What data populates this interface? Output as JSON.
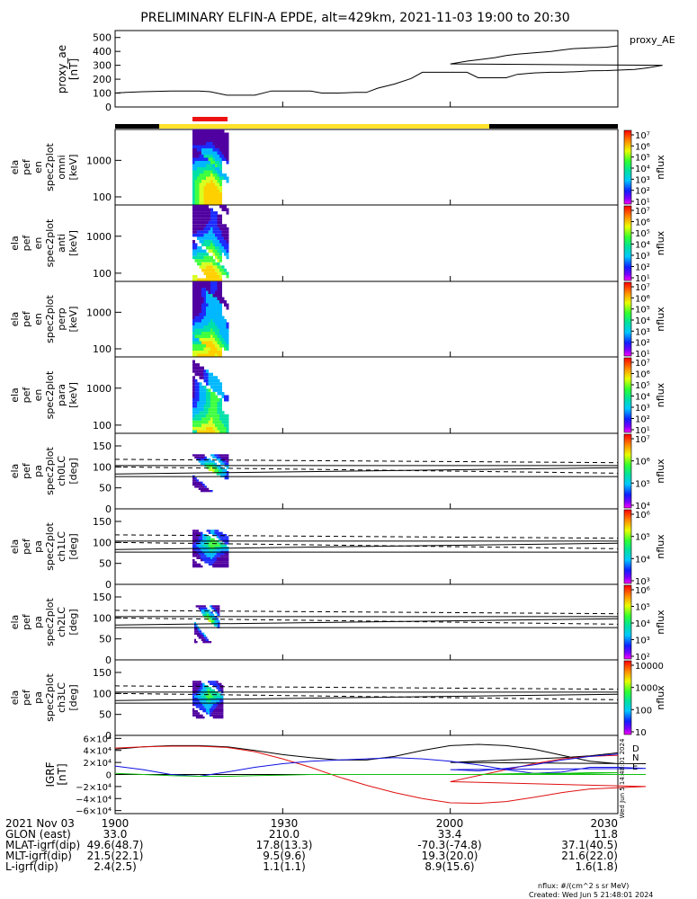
{
  "title": "PRELIMINARY ELFIN-A EPDE, alt=429km, 2021-11-03 19:00 to 20:30",
  "bar_colors": {
    "black": "#000000",
    "yellow": "#ffe22a",
    "red": "#ee1111"
  },
  "chart_data": [
    {
      "id": "proxy_ae",
      "type": "line",
      "ylabel_lines": [
        "proxy_ae",
        "[nT]"
      ],
      "legend": "proxy_AE",
      "yticks": [
        "500",
        "400",
        "300",
        "200",
        "100",
        "0"
      ],
      "ylim": [
        0,
        550
      ],
      "x": [
        1900,
        1902,
        1905,
        1910,
        1915,
        1917,
        1920,
        1923,
        1925,
        1928,
        1931,
        1935,
        1937,
        1940,
        1943,
        1945,
        1947,
        1950,
        1953,
        1955,
        1957,
        1960,
        1963,
        1965,
        1968,
        1970,
        1972,
        1975,
        1978,
        1980,
        1983,
        1985,
        1988,
        1990,
        1993,
        1995,
        1998,
        2000,
        2003,
        2005,
        2008,
        2010,
        2012,
        2015,
        2018,
        2020,
        2022,
        2025,
        2028,
        2030
      ],
      "values": [
        100,
        105,
        110,
        115,
        115,
        110,
        85,
        85,
        85,
        115,
        115,
        115,
        100,
        100,
        105,
        105,
        135,
        165,
        205,
        250,
        250,
        250,
        250,
        210,
        210,
        210,
        235,
        245,
        250,
        250,
        255,
        260,
        262,
        265,
        270,
        280,
        300,
        310,
        330,
        340,
        355,
        370,
        380,
        390,
        400,
        410,
        420,
        425,
        430,
        440
      ]
    },
    {
      "id": "spec-omni",
      "type": "heatmap",
      "ylabel_lines": [
        "ela",
        "pef",
        "en",
        "spec2plot",
        "omni",
        "[keV]"
      ],
      "yticks": [
        "1000",
        "100"
      ],
      "ylim_keV": [
        60,
        7000
      ],
      "colorbar": {
        "label": "nflux",
        "ticks": [
          "10⁷",
          "10⁶",
          "10⁵",
          "10⁴",
          "10³",
          "10²",
          "10¹"
        ]
      }
    },
    {
      "id": "spec-anti",
      "type": "heatmap",
      "ylabel_lines": [
        "ela",
        "pef",
        "en",
        "spec2plot",
        "anti",
        "[keV]"
      ],
      "yticks": [
        "1000",
        "100"
      ],
      "ylim_keV": [
        60,
        7000
      ],
      "colorbar": {
        "label": "nflux",
        "ticks": [
          "10⁷",
          "10⁶",
          "10⁵",
          "10⁴",
          "10³",
          "10²",
          "10¹"
        ]
      }
    },
    {
      "id": "spec-perp",
      "type": "heatmap",
      "ylabel_lines": [
        "ela",
        "pef",
        "en",
        "spec2plot",
        "perp",
        "[keV]"
      ],
      "yticks": [
        "1000",
        "100"
      ],
      "ylim_keV": [
        60,
        7000
      ],
      "colorbar": {
        "label": "nflux",
        "ticks": [
          "10⁷",
          "10⁶",
          "10⁵",
          "10⁴",
          "10³",
          "10²",
          "10¹"
        ]
      }
    },
    {
      "id": "spec-para",
      "type": "heatmap",
      "ylabel_lines": [
        "ela",
        "pef",
        "en",
        "spec2plot",
        "para",
        "[keV]"
      ],
      "yticks": [
        "1000",
        "100"
      ],
      "ylim_keV": [
        60,
        7000
      ],
      "colorbar": {
        "label": "nflux",
        "ticks": [
          "10⁷",
          "10⁶",
          "10⁵",
          "10⁴",
          "10³",
          "10²",
          "10¹"
        ]
      }
    },
    {
      "id": "pa-ch0",
      "type": "heatmap",
      "ylabel_lines": [
        "ela",
        "pef",
        "pa",
        "spec2plot",
        "ch0LC",
        "[deg]"
      ],
      "yticks": [
        "150",
        "100",
        "50",
        "0"
      ],
      "ylim": [
        0,
        180
      ],
      "colorbar": {
        "label": "nflux",
        "ticks": [
          "10⁷",
          "10⁶",
          "10⁵",
          "10⁴"
        ]
      }
    },
    {
      "id": "pa-ch1",
      "type": "heatmap",
      "ylabel_lines": [
        "ela",
        "pef",
        "pa",
        "spec2plot",
        "ch1LC",
        "[deg]"
      ],
      "yticks": [
        "150",
        "100",
        "50",
        "0"
      ],
      "ylim": [
        0,
        180
      ],
      "colorbar": {
        "label": "nflux",
        "ticks": [
          "10⁶",
          "10⁵",
          "10⁴",
          "10³"
        ]
      }
    },
    {
      "id": "pa-ch2",
      "type": "heatmap",
      "ylabel_lines": [
        "ela",
        "pef",
        "pa",
        "spec2plot",
        "ch2LC",
        "[deg]"
      ],
      "yticks": [
        "150",
        "100",
        "50",
        "0"
      ],
      "ylim": [
        0,
        180
      ],
      "colorbar": {
        "label": "nflux",
        "ticks": [
          "10⁶",
          "10⁵",
          "10⁴",
          "10³",
          "10²"
        ]
      }
    },
    {
      "id": "pa-ch3",
      "type": "heatmap",
      "ylabel_lines": [
        "ela",
        "pef",
        "pa",
        "spec2plot",
        "ch3LC",
        "[deg]"
      ],
      "yticks": [
        "150",
        "100",
        "50",
        "0"
      ],
      "ylim": [
        0,
        180
      ],
      "colorbar": {
        "label": "nflux",
        "ticks": [
          "10000",
          "1000",
          "100",
          "10"
        ]
      }
    },
    {
      "id": "igrf",
      "type": "line",
      "ylabel_lines": [
        "IGRF",
        "[nT]"
      ],
      "yticks": [
        "6×10⁴",
        "4×10⁴",
        "2×10⁴",
        "0",
        "−2×10⁴",
        "−4×10⁴",
        "−6×10⁴"
      ],
      "ylim": [
        -65000,
        65000
      ],
      "legend": [
        "D",
        "N",
        "E"
      ],
      "side_text": "Wed Jun 5 14:48:01 2024",
      "x": [
        1900,
        1905,
        1910,
        1915,
        1920,
        1925,
        1930,
        1935,
        1940,
        1945,
        1950,
        1955,
        1960,
        1965,
        1970,
        1975,
        1980,
        1985,
        1990,
        1995,
        2000,
        2005,
        2010,
        2015,
        2020,
        2025,
        2030
      ],
      "series": [
        {
          "name": "D",
          "color": "#000000",
          "values": [
            42000,
            46000,
            48000,
            48000,
            46000,
            40000,
            33000,
            28000,
            24000,
            24000,
            30000,
            40000,
            48000,
            50000,
            48000,
            42000,
            32000,
            22000,
            18000,
            18000,
            20000,
            22000,
            24000,
            26000,
            28000,
            31000,
            36000
          ]
        },
        {
          "name": "N",
          "color": "#e01010",
          "values": [
            44000,
            46000,
            47000,
            47000,
            45000,
            38000,
            26000,
            12000,
            -4000,
            -18000,
            -30000,
            -40000,
            -47000,
            -48000,
            -45000,
            -38000,
            -30000,
            -24000,
            -22000,
            -20000,
            -12000,
            -2000,
            8000,
            18000,
            26000,
            30000,
            32000
          ]
        },
        {
          "name": "E",
          "color": "#1010e0",
          "values": [
            14000,
            8000,
            0,
            -3000,
            4000,
            12000,
            18000,
            22000,
            24000,
            26000,
            28000,
            26000,
            22000,
            16000,
            8000,
            2000,
            4000,
            12000,
            12000,
            10000,
            8000,
            6000,
            10000,
            16000,
            24000,
            30000,
            34000
          ]
        },
        {
          "name": "E",
          "color": "#10c010",
          "values": [
            2000,
            0,
            -2000,
            -3000,
            -3000,
            -2000,
            -1000,
            0,
            0,
            0,
            0,
            0,
            0,
            0,
            0,
            0,
            1000,
            1000,
            0,
            0,
            0,
            0,
            1000,
            2000,
            2000,
            3000,
            3000
          ]
        }
      ]
    }
  ],
  "xaxis": {
    "ticks": [
      "1900",
      "1930",
      "2000",
      "2030"
    ]
  },
  "ephem": {
    "rows": [
      {
        "label": "2021 Nov 03",
        "vals": [
          "1900",
          "1930",
          "2000",
          "2030"
        ]
      },
      {
        "label": "GLON (east)",
        "vals": [
          "33.0",
          "210.0",
          "33.4",
          "11.8"
        ]
      },
      {
        "label": "MLAT-igrf(dip)",
        "vals": [
          "49.6(48.7)",
          "17.8(13.3)",
          "-70.3(-74.8)",
          "37.1(40.5)"
        ]
      },
      {
        "label": "MLT-igrf(dip)",
        "vals": [
          "21.5(22.1)",
          "9.5(9.6)",
          "19.3(20.0)",
          "21.6(22.0)"
        ]
      },
      {
        "label": "L-igrf(dip)",
        "vals": [
          "2.4(2.5)",
          "1.1(1.1)",
          "8.9(15.6)",
          "1.6(1.8)"
        ]
      }
    ]
  },
  "footer": {
    "units": "nflux: #/(cm^2 s sr MeV)",
    "created": "Created: Wed Jun  5 21:48:01 2024"
  }
}
